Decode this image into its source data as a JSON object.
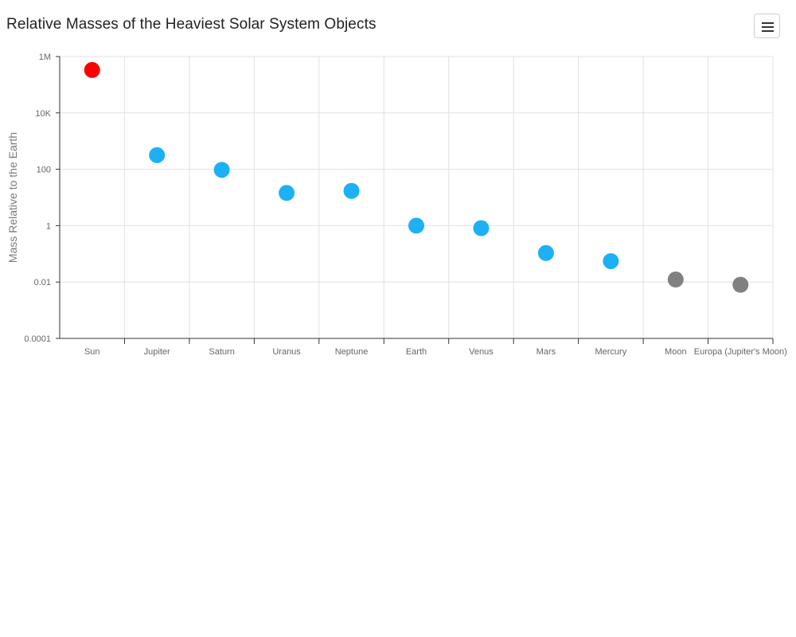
{
  "chart_data": {
    "type": "scatter",
    "title": "Relative Masses of the Heaviest Solar System Objects",
    "xlabel": "",
    "ylabel": "Mass Relative to the Earth",
    "y_scale": "log",
    "ylim": [
      0.0001,
      1000000
    ],
    "y_ticks": [
      0.0001,
      0.01,
      1,
      100,
      10000,
      1000000
    ],
    "y_tick_labels": [
      "0.0001",
      "0.01",
      "1",
      "100",
      "10K",
      "1M"
    ],
    "grid": true,
    "categories": [
      "Sun",
      "Jupiter",
      "Saturn",
      "Uranus",
      "Neptune",
      "Earth",
      "Venus",
      "Mars",
      "Mercury",
      "Moon",
      "Europa (Jupiter's Moon)"
    ],
    "values": [
      333000,
      317.8,
      95.2,
      14.5,
      17.1,
      1,
      0.815,
      0.107,
      0.055,
      0.0123,
      0.008
    ],
    "point_colors": [
      "#ff0000",
      "#1eb0f5",
      "#1eb0f5",
      "#1eb0f5",
      "#1eb0f5",
      "#1eb0f5",
      "#1eb0f5",
      "#1eb0f5",
      "#1eb0f5",
      "#808080",
      "#808080"
    ]
  },
  "menu": {
    "icon": "hamburger-menu-icon"
  }
}
